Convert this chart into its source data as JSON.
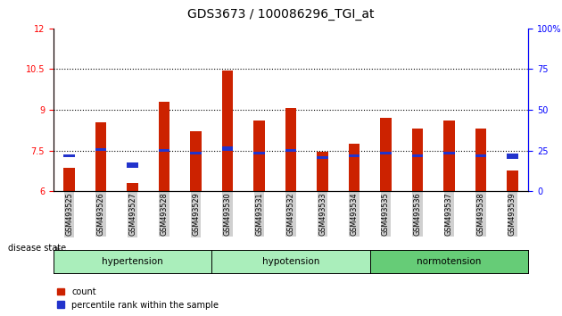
{
  "title": "GDS3673 / 100086296_TGI_at",
  "samples": [
    "GSM493525",
    "GSM493526",
    "GSM493527",
    "GSM493528",
    "GSM493529",
    "GSM493530",
    "GSM493531",
    "GSM493532",
    "GSM493533",
    "GSM493534",
    "GSM493535",
    "GSM493536",
    "GSM493537",
    "GSM493538",
    "GSM493539"
  ],
  "count_values": [
    6.85,
    8.55,
    6.3,
    9.3,
    8.2,
    10.45,
    8.6,
    9.05,
    7.45,
    7.75,
    8.7,
    8.3,
    8.6,
    8.3,
    6.75
  ],
  "percentile_values": [
    7.25,
    7.5,
    6.85,
    7.45,
    7.35,
    7.5,
    7.35,
    7.45,
    7.2,
    7.25,
    7.35,
    7.25,
    7.35,
    7.25,
    7.2
  ],
  "blue_bar_heights": [
    0.1,
    0.1,
    0.2,
    0.1,
    0.1,
    0.15,
    0.1,
    0.1,
    0.1,
    0.1,
    0.1,
    0.1,
    0.1,
    0.1,
    0.2
  ],
  "y_min": 6,
  "y_max": 12,
  "y_ticks_left": [
    6,
    7.5,
    9,
    10.5,
    12
  ],
  "y_ticks_right": [
    0,
    25,
    50,
    75,
    100
  ],
  "bar_width": 0.35,
  "blue_bar_width": 0.35,
  "red_color": "#cc2200",
  "blue_color": "#2233cc",
  "legend_items": [
    "count",
    "percentile rank within the sample"
  ],
  "disease_state_label": "disease state",
  "groups": [
    {
      "label": "hypertension",
      "start": 0,
      "end": 4,
      "color": "#aaeebb"
    },
    {
      "label": "hypotension",
      "start": 5,
      "end": 9,
      "color": "#aaeebb"
    },
    {
      "label": "normotension",
      "start": 10,
      "end": 14,
      "color": "#66cc77"
    }
  ]
}
